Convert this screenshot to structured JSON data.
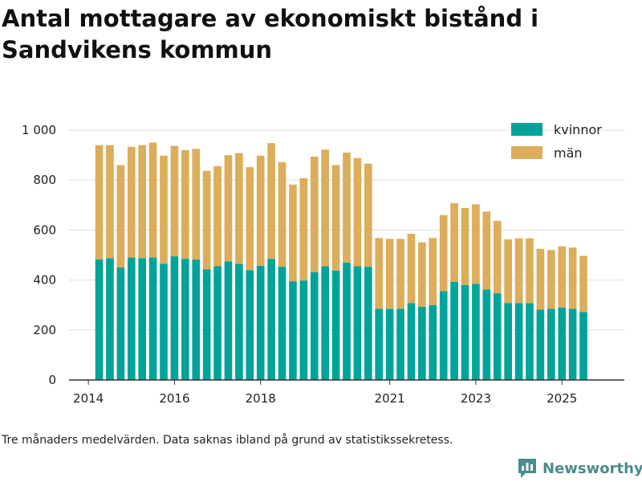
{
  "page": {
    "title": "Antal mottagare av ekonomiskt bistånd i Sandvikens kommun",
    "caption": "Tre månaders medelvärden. Data saknas ibland på grund av statistikssekretess.",
    "brand": "Newsworthy",
    "brand_icon": "newsworthy-logo-icon"
  },
  "colors": {
    "kvinnor": "#00a39a",
    "man": "#dcad5a",
    "grid": "#dddddd",
    "axis": "#333333",
    "brand": "#4b8c8c"
  },
  "chart_data": {
    "type": "bar",
    "stacked": true,
    "title": "Antal mottagare av ekonomiskt bistånd i Sandvikens kommun",
    "xlabel": "",
    "ylabel": "",
    "ylim": [
      0,
      1000
    ],
    "xlim": [
      2013.55,
      2026.45
    ],
    "yticks": [
      0,
      200,
      400,
      600,
      800,
      1000
    ],
    "ytick_labels": [
      "0",
      "200",
      "400",
      "600",
      "800",
      "1 000"
    ],
    "xticks": [
      2014,
      2016,
      2018,
      2021,
      2023,
      2025
    ],
    "xtick_labels": [
      "2014",
      "2016",
      "2018",
      "2021",
      "2023",
      "2025"
    ],
    "grid": true,
    "legend": {
      "position": "top-right",
      "entries": [
        "kvinnor",
        "män"
      ]
    },
    "x": [
      2014.25,
      2014.5,
      2014.75,
      2015.0,
      2015.25,
      2015.5,
      2015.75,
      2016.0,
      2016.25,
      2016.5,
      2016.75,
      2017.0,
      2017.25,
      2017.5,
      2017.75,
      2018.0,
      2018.25,
      2018.5,
      2018.75,
      2019.0,
      2019.25,
      2019.5,
      2019.75,
      2020.0,
      2020.25,
      2020.5,
      2020.75,
      2021.0,
      2021.25,
      2021.5,
      2021.75,
      2022.0,
      2022.25,
      2022.5,
      2022.75,
      2023.0,
      2023.25,
      2023.5,
      2023.75,
      2024.0,
      2024.25,
      2024.5,
      2024.75,
      2025.0,
      2025.25,
      2025.5
    ],
    "series": [
      {
        "name": "kvinnor",
        "values": [
          483,
          487,
          450,
          490,
          488,
          490,
          465,
          495,
          485,
          482,
          443,
          455,
          475,
          465,
          440,
          457,
          485,
          453,
          395,
          398,
          432,
          455,
          438,
          470,
          455,
          453,
          285,
          285,
          285,
          308,
          293,
          300,
          355,
          393,
          380,
          385,
          362,
          347,
          308,
          307,
          307,
          282,
          285,
          290,
          285,
          272
        ]
      },
      {
        "name": "män",
        "values": [
          457,
          453,
          410,
          443,
          452,
          460,
          433,
          442,
          435,
          443,
          394,
          401,
          425,
          443,
          412,
          441,
          463,
          419,
          387,
          410,
          462,
          467,
          422,
          440,
          433,
          413,
          283,
          280,
          280,
          277,
          258,
          268,
          305,
          315,
          308,
          318,
          312,
          290,
          255,
          260,
          260,
          243,
          235,
          245,
          245,
          225
        ]
      }
    ]
  }
}
